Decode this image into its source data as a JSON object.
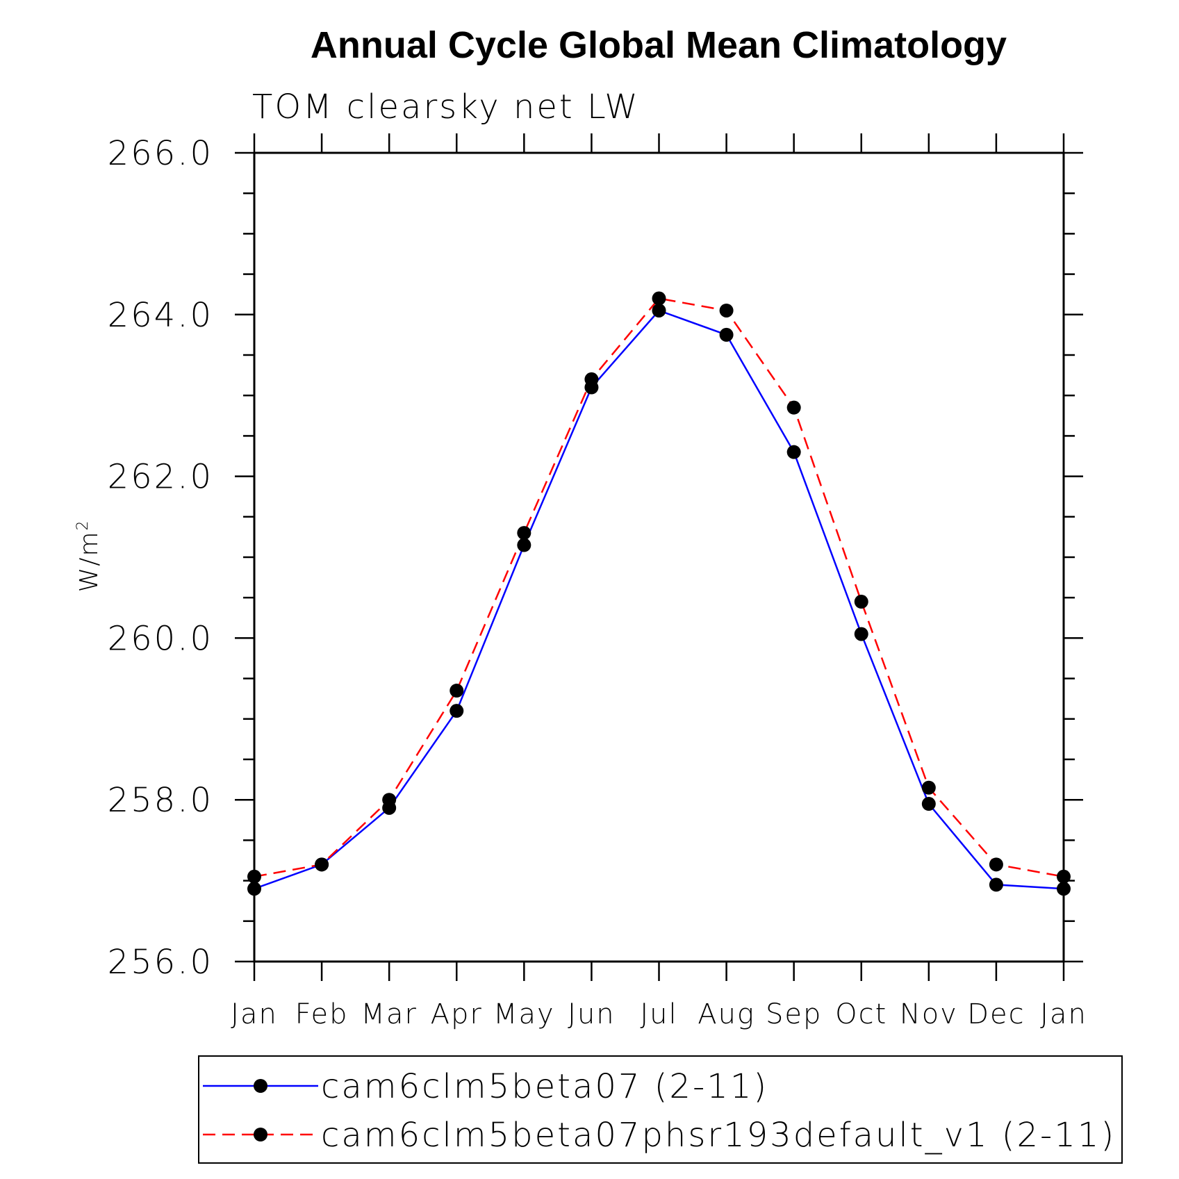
{
  "chart_data": {
    "type": "line",
    "title": "Annual Cycle Global Mean Climatology",
    "subtitle": "TOM clearsky net LW",
    "ylabel": "W/m",
    "ylabel_superscript": "2",
    "categories": [
      "Jan",
      "Feb",
      "Mar",
      "Apr",
      "May",
      "Jun",
      "Jul",
      "Aug",
      "Sep",
      "Oct",
      "Nov",
      "Dec",
      "Jan"
    ],
    "ylim": [
      256.0,
      266.0
    ],
    "yticks": [
      "256.0",
      "258.0",
      "260.0",
      "262.0",
      "264.0",
      "266.0"
    ],
    "grid": false,
    "legend_placement": "bottom",
    "series": [
      {
        "name": "cam6clm5beta07 (2-11)",
        "color": "#0000ff",
        "line_style": "solid",
        "marker": "filled-circle",
        "values": [
          256.9,
          257.2,
          257.9,
          259.1,
          261.15,
          263.1,
          264.05,
          263.75,
          262.3,
          260.05,
          257.95,
          256.95,
          256.9
        ]
      },
      {
        "name": "cam6clm5beta07phsr193default_v1 (2-11)",
        "color": "#ff0000",
        "line_style": "dashed",
        "marker": "filled-circle",
        "values": [
          257.05,
          257.2,
          258.0,
          259.35,
          261.3,
          263.2,
          264.2,
          264.05,
          262.85,
          260.45,
          258.15,
          257.2,
          257.05
        ]
      }
    ]
  }
}
